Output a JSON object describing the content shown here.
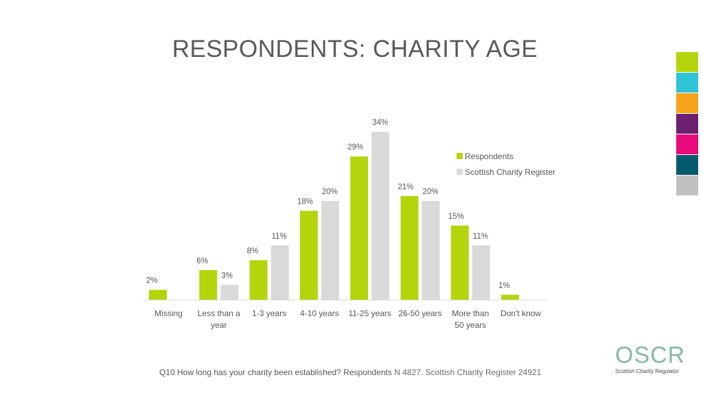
{
  "title": "RESPONDENTS: CHARITY AGE",
  "swatches": [
    "#b5d40c",
    "#2ec4d6",
    "#f7a21b",
    "#6b2070",
    "#e8097a",
    "#035a6e",
    "#c0c0c0"
  ],
  "legend": {
    "respondents": "Respondents",
    "register": "Scottish Charity Register"
  },
  "footnote": {
    "question": "Q10 How long has your charity been established? Respondents",
    "sample": "N 4827. Scottish Charity Register 24921"
  },
  "logo": {
    "word": "OSCR",
    "sub": "Scottish Charity Regulator"
  },
  "chart_data": {
    "type": "bar",
    "title": "RESPONDENTS: CHARITY AGE",
    "xlabel": "",
    "ylabel": "",
    "ylim": [
      0,
      34
    ],
    "grid": false,
    "legend_position": "right",
    "categories": [
      [
        "Missing"
      ],
      [
        "Less than a",
        "year"
      ],
      [
        "1-3 years"
      ],
      [
        "4-10 years"
      ],
      [
        "11-25 years"
      ],
      [
        "26-50 years"
      ],
      [
        "More than",
        "50 years"
      ],
      [
        "Don't know"
      ]
    ],
    "series": [
      {
        "name": "Respondents",
        "color": "#b5d40c",
        "values": [
          2,
          6,
          8,
          18,
          29,
          21,
          15,
          1
        ],
        "labels": [
          "2%",
          "6%",
          "8%",
          "18%",
          "29%",
          "21%",
          "15%",
          "1%"
        ]
      },
      {
        "name": "Scottish Charity Register",
        "color": "#d9d9d9",
        "values": [
          null,
          3,
          11,
          20,
          34,
          20,
          11,
          null
        ],
        "labels": [
          "",
          "3%",
          "11%",
          "20%",
          "34%",
          "20%",
          "11%",
          ""
        ]
      }
    ]
  }
}
